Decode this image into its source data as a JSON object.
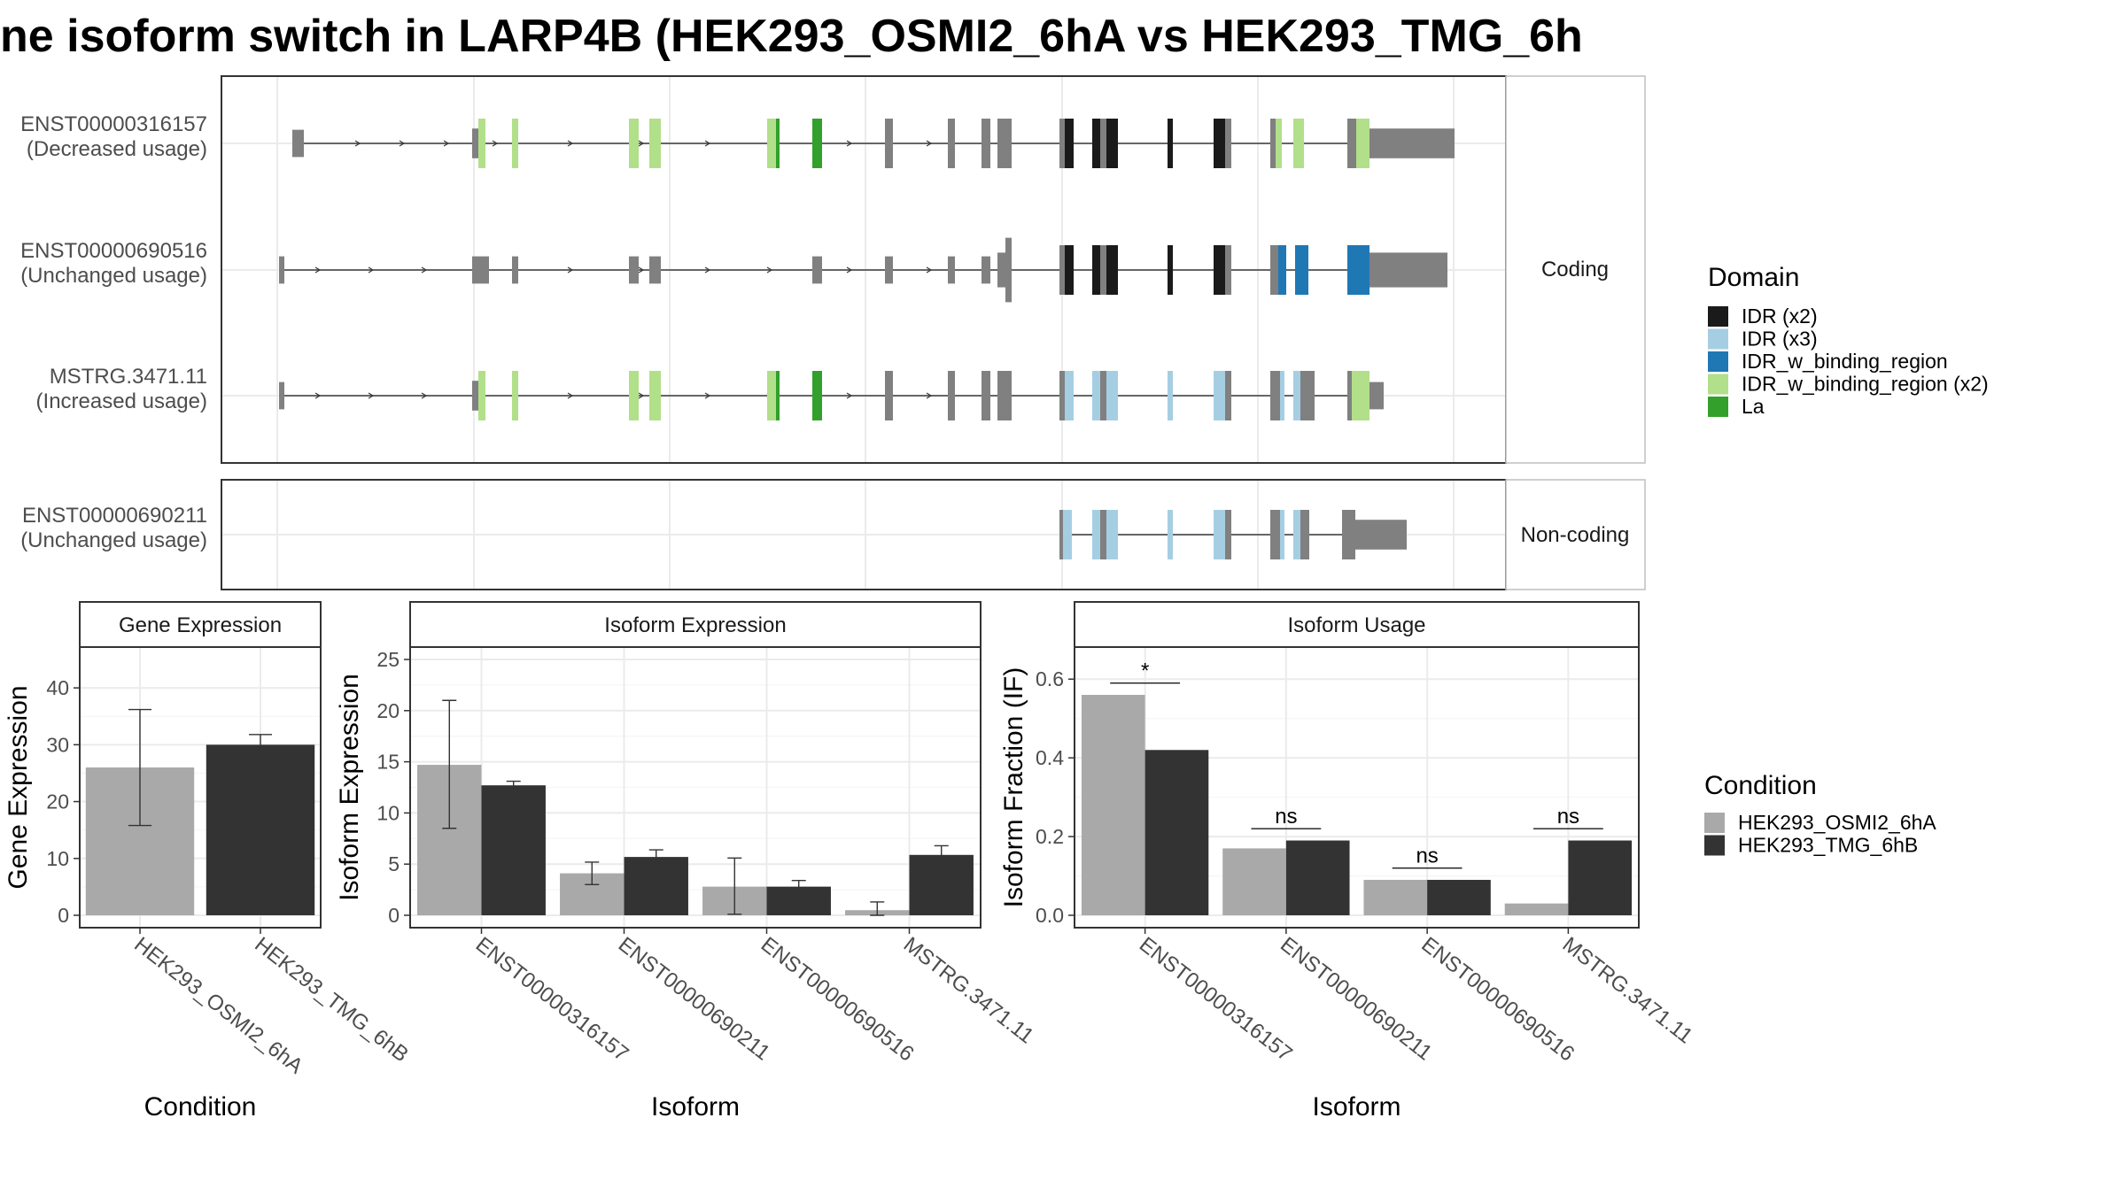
{
  "title": "ne isoform switch in LARP4B (HEK293_OSMI2_6hA vs HEK293_TMG_6h",
  "colors": {
    "IDR (x2)": "#1a1a1a",
    "IDR (x3)": "#a6cee3",
    "IDR_w_binding_region": "#1f78b4",
    "IDR_w_binding_region (x2)": "#b2df8a",
    "La": "#33a02c",
    "exon": "#808080",
    "cond_A": "#a9a9a9",
    "cond_B": "#333333"
  },
  "structure": {
    "facet_coding": "Coding",
    "facet_noncoding": "Non-coding",
    "transcripts": [
      {
        "id": "ENST00000316157",
        "usage": "(Decreased usage)",
        "group": "coding"
      },
      {
        "id": "ENST00000690516",
        "usage": "(Unchanged usage)",
        "group": "coding"
      },
      {
        "id": "MSTRG.3471.11",
        "usage": "(Increased usage)",
        "group": "coding"
      },
      {
        "id": "ENST00000690211",
        "usage": "(Unchanged usage)",
        "group": "noncoding"
      }
    ]
  },
  "legend_domain": {
    "title": "Domain",
    "items": [
      "IDR (x2)",
      "IDR (x3)",
      "IDR_w_binding_region",
      "IDR_w_binding_region (x2)",
      "La"
    ]
  },
  "legend_condition": {
    "title": "Condition",
    "items": [
      "HEK293_OSMI2_6hA",
      "HEK293_TMG_6hB"
    ]
  },
  "chart_data": [
    {
      "type": "bar",
      "title": "Gene Expression",
      "xlabel": "Condition",
      "ylabel": "Gene Expression",
      "ylim": [
        0,
        45
      ],
      "yticks": [
        0,
        10,
        20,
        30,
        40
      ],
      "categories": [
        "HEK293_OSMI2_6hA",
        "HEK293_TMG_6hB"
      ],
      "values": [
        26,
        30
      ],
      "error_low": [
        15.8,
        28.3
      ],
      "error_high": [
        36.2,
        31.8
      ]
    },
    {
      "type": "bar",
      "title": "Isoform Expression",
      "xlabel": "Isoform",
      "ylabel": "Isoform Expression",
      "ylim": [
        0,
        25
      ],
      "yticks": [
        0,
        5,
        10,
        15,
        20,
        25
      ],
      "categories": [
        "ENST00000316157",
        "ENST00000690211",
        "ENST00000690516",
        "MSTRG.3471.11"
      ],
      "series": [
        {
          "name": "HEK293_OSMI2_6hA",
          "values": [
            14.7,
            4.1,
            2.8,
            0.5
          ],
          "error_low": [
            8.5,
            3.0,
            0.1,
            0.0
          ],
          "error_high": [
            21.0,
            5.2,
            5.6,
            1.3
          ]
        },
        {
          "name": "HEK293_TMG_6hB",
          "values": [
            12.7,
            5.7,
            2.8,
            5.9
          ],
          "error_low": [
            12.3,
            5.0,
            2.2,
            5.0
          ],
          "error_high": [
            13.1,
            6.4,
            3.4,
            6.8
          ]
        }
      ]
    },
    {
      "type": "bar",
      "title": "Isoform Usage",
      "xlabel": "Isoform",
      "ylabel": "Isoform Fraction (IF)",
      "ylim": [
        0,
        0.65
      ],
      "yticks": [
        0.0,
        0.2,
        0.4,
        0.6
      ],
      "ytick_labels": [
        "0.0",
        "0.2",
        "0.4",
        "0.6"
      ],
      "categories": [
        "ENST00000316157",
        "ENST00000690211",
        "ENST00000690516",
        "MSTRG.3471.11"
      ],
      "series": [
        {
          "name": "HEK293_OSMI2_6hA",
          "values": [
            0.56,
            0.17,
            0.09,
            0.03
          ]
        },
        {
          "name": "HEK293_TMG_6hB",
          "values": [
            0.42,
            0.19,
            0.09,
            0.19
          ]
        }
      ],
      "significance": [
        "*",
        "ns",
        "ns",
        "ns"
      ],
      "significance_y": [
        0.59,
        0.22,
        0.12,
        0.22
      ]
    }
  ]
}
